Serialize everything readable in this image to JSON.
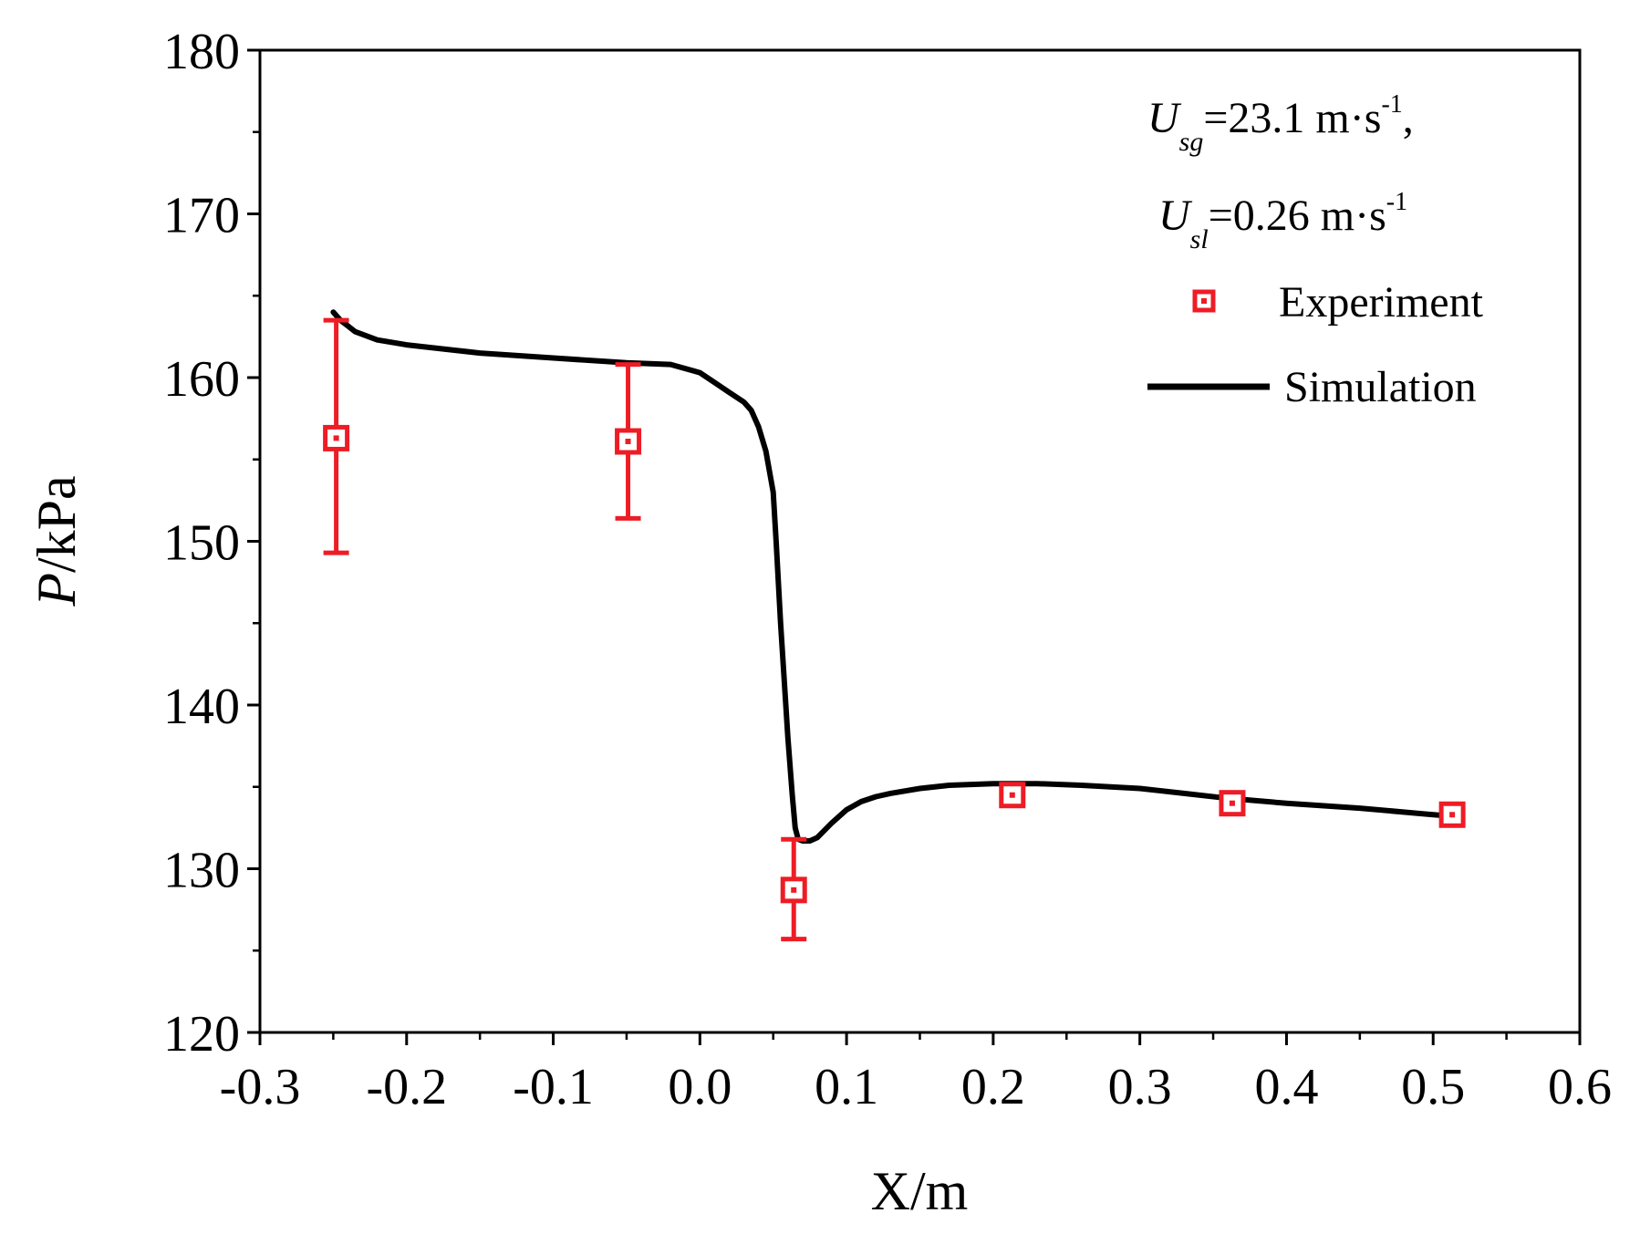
{
  "chart_data": {
    "type": "line",
    "xlabel": "X/m",
    "ylabel_italic": "P",
    "ylabel_rest": "/kPa",
    "xlim": [
      -0.3,
      0.6
    ],
    "ylim": [
      120,
      180
    ],
    "xticks": [
      -0.3,
      -0.2,
      -0.1,
      0.0,
      0.1,
      0.2,
      0.3,
      0.4,
      0.5,
      0.6
    ],
    "xtick_labels": [
      "-0.3",
      "-0.2",
      "-0.1",
      "0.0",
      "0.1",
      "0.2",
      "0.3",
      "0.4",
      "0.5",
      "0.6"
    ],
    "yticks": [
      120,
      130,
      140,
      150,
      160,
      170,
      180
    ],
    "ytick_labels": [
      "120",
      "130",
      "140",
      "150",
      "160",
      "170",
      "180"
    ],
    "x_minor_step": 0.05,
    "y_minor_step": 5,
    "grid": false,
    "legend_position": "top-right",
    "annotation": {
      "line1": {
        "var": "U",
        "sub": "sg",
        "value": "=23.1 m·s",
        "sup": "-1",
        "tail": ","
      },
      "line2": {
        "var": "U",
        "sub": "sl",
        "value": "=0.26 m·s",
        "sup": "-1",
        "tail": ""
      }
    },
    "series": [
      {
        "name": "Experiment",
        "kind": "scatter",
        "marker": "open-square",
        "color": "#ee1c25",
        "points": [
          {
            "x": -0.248,
            "y": 156.3,
            "ylo": 149.3,
            "yhi": 163.5
          },
          {
            "x": -0.049,
            "y": 156.1,
            "ylo": 151.4,
            "yhi": 160.8
          },
          {
            "x": 0.064,
            "y": 128.7,
            "ylo": 125.7,
            "yhi": 131.8
          },
          {
            "x": 0.213,
            "y": 134.5
          },
          {
            "x": 0.363,
            "y": 134.0
          },
          {
            "x": 0.513,
            "y": 133.3
          }
        ]
      },
      {
        "name": "Simulation",
        "kind": "line",
        "color": "#000000",
        "x": [
          -0.25,
          -0.245,
          -0.235,
          -0.22,
          -0.2,
          -0.15,
          -0.1,
          -0.05,
          -0.02,
          0.0,
          0.01,
          0.02,
          0.03,
          0.035,
          0.04,
          0.045,
          0.05,
          0.052,
          0.055,
          0.06,
          0.063,
          0.065,
          0.067,
          0.07,
          0.075,
          0.08,
          0.09,
          0.1,
          0.11,
          0.12,
          0.13,
          0.15,
          0.17,
          0.2,
          0.23,
          0.26,
          0.3,
          0.33,
          0.36,
          0.4,
          0.45,
          0.5,
          0.515
        ],
        "y": [
          164.0,
          163.5,
          162.8,
          162.3,
          162.0,
          161.5,
          161.2,
          160.9,
          160.8,
          160.3,
          159.7,
          159.1,
          158.5,
          158.0,
          157.0,
          155.5,
          153.0,
          150.0,
          145.0,
          138.0,
          134.5,
          132.5,
          131.8,
          131.7,
          131.7,
          131.9,
          132.8,
          133.6,
          134.1,
          134.4,
          134.6,
          134.9,
          135.1,
          135.2,
          135.2,
          135.1,
          134.9,
          134.6,
          134.3,
          134.0,
          133.7,
          133.3,
          133.2
        ]
      }
    ]
  }
}
